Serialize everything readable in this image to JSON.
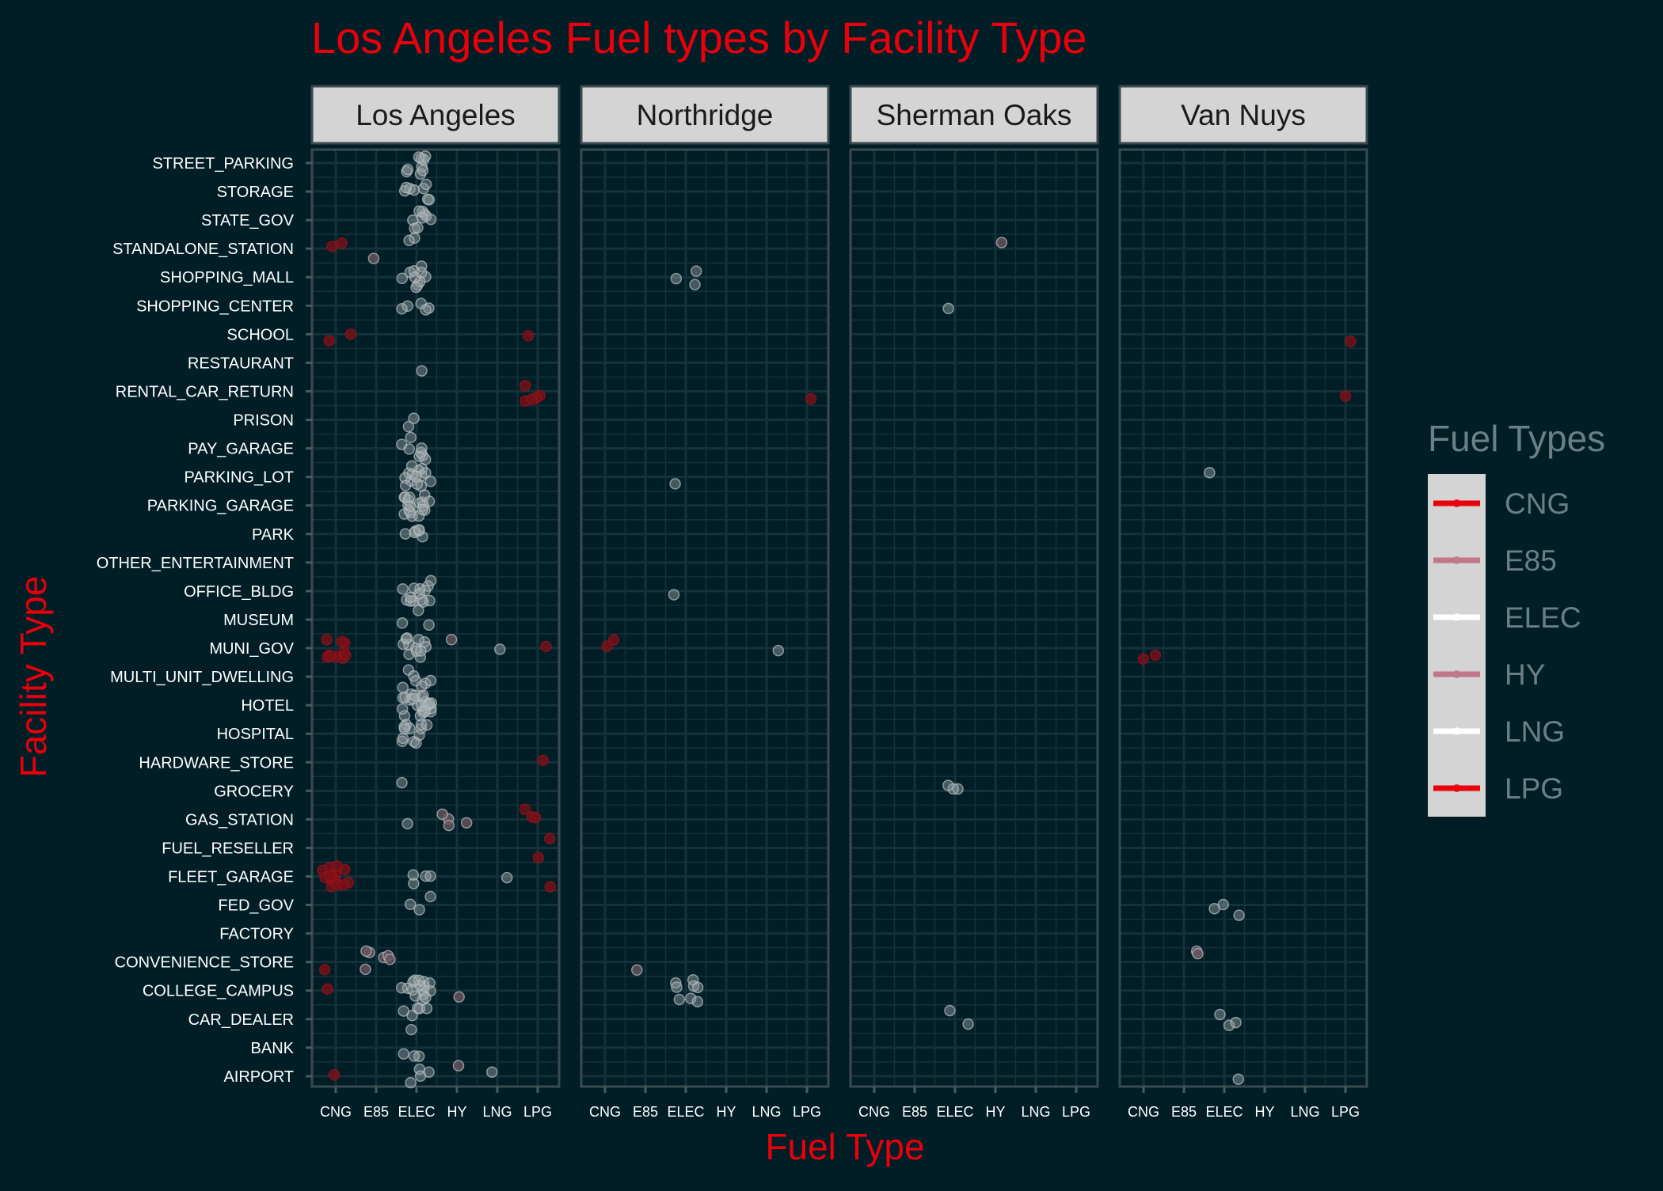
{
  "chart_data": {
    "type": "scatter",
    "subtype": "faceted jitter plot",
    "title": "Los Angeles Fuel types by Facility Type",
    "xlabel": "Fuel Type",
    "ylabel": "Facility Type",
    "legend_title": "Fuel Types",
    "legend_position": "right",
    "x_categories": [
      "CNG",
      "E85",
      "ELEC",
      "HY",
      "LNG",
      "LPG"
    ],
    "y_categories": [
      "STREET_PARKING",
      "STORAGE",
      "STATE_GOV",
      "STANDALONE_STATION",
      "SHOPPING_MALL",
      "SHOPPING_CENTER",
      "SCHOOL",
      "RESTAURANT",
      "RENTAL_CAR_RETURN",
      "PRISON",
      "PAY_GARAGE",
      "PARKING_LOT",
      "PARKING_GARAGE",
      "PARK",
      "OTHER_ENTERTAINMENT",
      "OFFICE_BLDG",
      "MUSEUM",
      "MUNI_GOV",
      "MULTI_UNIT_DWELLING",
      "HOTEL",
      "HOSPITAL",
      "HARDWARE_STORE",
      "GROCERY",
      "GAS_STATION",
      "FUEL_RESELLER",
      "FLEET_GARAGE",
      "FED_GOV",
      "FACTORY",
      "CONVENIENCE_STORE",
      "COLLEGE_CAMPUS",
      "CAR_DEALER",
      "BANK",
      "AIRPORT"
    ],
    "fuel_colors": {
      "CNG": "#e8000b",
      "E85": "#c07888",
      "ELEC": "#ffffff",
      "HY": "#c07888",
      "LNG": "#ffffff",
      "LPG": "#e8000b"
    },
    "facets": [
      {
        "name": "Los Angeles",
        "points": [
          [
            "ELEC",
            "STREET_PARKING",
            9
          ],
          [
            "ELEC",
            "STORAGE",
            8
          ],
          [
            "ELEC",
            "STATE_GOV",
            9
          ],
          [
            "CNG",
            "STANDALONE_STATION",
            2
          ],
          [
            "E85",
            "STANDALONE_STATION",
            1
          ],
          [
            "ELEC",
            "STANDALONE_STATION",
            2
          ],
          [
            "ELEC",
            "SHOPPING_MALL",
            10
          ],
          [
            "ELEC",
            "SHOPPING_CENTER",
            5
          ],
          [
            "CNG",
            "SCHOOL",
            2
          ],
          [
            "LPG",
            "SCHOOL",
            1
          ],
          [
            "ELEC",
            "RESTAURANT",
            1
          ],
          [
            "LPG",
            "RENTAL_CAR_RETURN",
            5
          ],
          [
            "ELEC",
            "PRISON",
            2
          ],
          [
            "ELEC",
            "PAY_GARAGE",
            8
          ],
          [
            "ELEC",
            "PARKING_LOT",
            14
          ],
          [
            "ELEC",
            "PARKING_GARAGE",
            18
          ],
          [
            "ELEC",
            "PARK",
            6
          ],
          [
            "ELEC",
            "OFFICE_BLDG",
            14
          ],
          [
            "ELEC",
            "MUSEUM",
            3
          ],
          [
            "CNG",
            "MUNI_GOV",
            10
          ],
          [
            "ELEC",
            "MUNI_GOV",
            12
          ],
          [
            "HY",
            "MUNI_GOV",
            1
          ],
          [
            "LNG",
            "MUNI_GOV",
            1
          ],
          [
            "LPG",
            "MUNI_GOV",
            1
          ],
          [
            "ELEC",
            "MULTI_UNIT_DWELLING",
            7
          ],
          [
            "ELEC",
            "HOTEL",
            24
          ],
          [
            "ELEC",
            "HOSPITAL",
            12
          ],
          [
            "LPG",
            "HARDWARE_STORE",
            1
          ],
          [
            "ELEC",
            "GROCERY",
            1
          ],
          [
            "ELEC",
            "GAS_STATION",
            1
          ],
          [
            "HY",
            "GAS_STATION",
            4
          ],
          [
            "LPG",
            "GAS_STATION",
            3
          ],
          [
            "LPG",
            "FUEL_RESELLER",
            2
          ],
          [
            "CNG",
            "FLEET_GARAGE",
            14
          ],
          [
            "ELEC",
            "FLEET_GARAGE",
            4
          ],
          [
            "LNG",
            "FLEET_GARAGE",
            1
          ],
          [
            "LPG",
            "FLEET_GARAGE",
            1
          ],
          [
            "ELEC",
            "FED_GOV",
            3
          ],
          [
            "CNG",
            "CONVENIENCE_STORE",
            1
          ],
          [
            "E85",
            "CONVENIENCE_STORE",
            6
          ],
          [
            "CNG",
            "COLLEGE_CAMPUS",
            1
          ],
          [
            "ELEC",
            "COLLEGE_CAMPUS",
            16
          ],
          [
            "HY",
            "COLLEGE_CAMPUS",
            1
          ],
          [
            "ELEC",
            "CAR_DEALER",
            6
          ],
          [
            "ELEC",
            "BANK",
            3
          ],
          [
            "CNG",
            "AIRPORT",
            1
          ],
          [
            "ELEC",
            "AIRPORT",
            4
          ],
          [
            "HY",
            "AIRPORT",
            1
          ],
          [
            "LNG",
            "AIRPORT",
            1
          ]
        ]
      },
      {
        "name": "Northridge",
        "points": [
          [
            "ELEC",
            "SHOPPING_MALL",
            3
          ],
          [
            "LPG",
            "RENTAL_CAR_RETURN",
            1
          ],
          [
            "ELEC",
            "PARKING_LOT",
            1
          ],
          [
            "ELEC",
            "OFFICE_BLDG",
            1
          ],
          [
            "CNG",
            "MUNI_GOV",
            2
          ],
          [
            "LNG",
            "MUNI_GOV",
            1
          ],
          [
            "E85",
            "CONVENIENCE_STORE",
            1
          ],
          [
            "ELEC",
            "COLLEGE_CAMPUS",
            8
          ]
        ]
      },
      {
        "name": "Sherman Oaks",
        "points": [
          [
            "HY",
            "STANDALONE_STATION",
            1
          ],
          [
            "ELEC",
            "SHOPPING_CENTER",
            1
          ],
          [
            "ELEC",
            "GROCERY",
            3
          ],
          [
            "ELEC",
            "CAR_DEALER",
            2
          ]
        ]
      },
      {
        "name": "Van Nuys",
        "points": [
          [
            "LPG",
            "SCHOOL",
            1
          ],
          [
            "LPG",
            "RENTAL_CAR_RETURN",
            1
          ],
          [
            "ELEC",
            "PARKING_LOT",
            1
          ],
          [
            "CNG",
            "MUNI_GOV",
            2
          ],
          [
            "ELEC",
            "FED_GOV",
            3
          ],
          [
            "E85",
            "CONVENIENCE_STORE",
            2
          ],
          [
            "ELEC",
            "CAR_DEALER",
            3
          ],
          [
            "ELEC",
            "AIRPORT",
            1
          ]
        ]
      }
    ]
  },
  "colors": {
    "background": "#011e27",
    "panel": "#011e27",
    "grid": "#15323c",
    "strip": "#d4d4d4",
    "title": "#e8000b",
    "axis_text": "#ffffff",
    "legend_text": "#6b7f86",
    "point_fill": "#9aa3a6"
  }
}
